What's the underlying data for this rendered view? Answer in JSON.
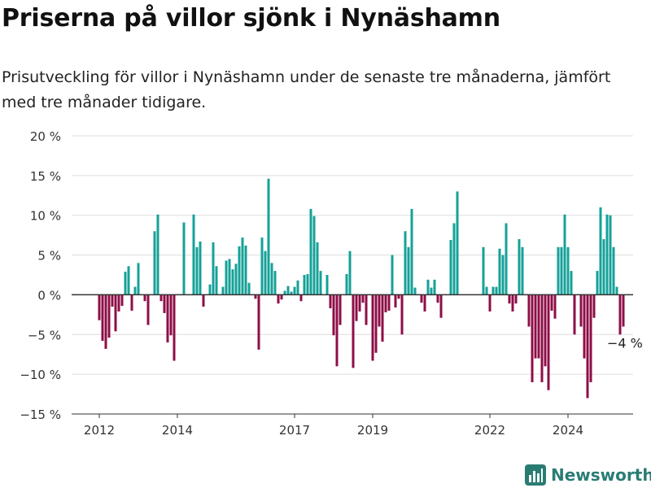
{
  "header": {
    "title": "Priserna på villor sjönk i Nynäshamn",
    "subtitle": "Prisutveckling för villor i Nynäshamn under de senaste tre månaderna, jämfört med tre månader tidigare."
  },
  "brand": {
    "name": "Newsworthy",
    "icon": "bar-chart-logo-icon",
    "color": "#2a7c73"
  },
  "colors": {
    "positive": "#15a198",
    "negative": "#8e0e46",
    "zero_line": "#333333",
    "grid": "#dddddd"
  },
  "chart_data": {
    "type": "bar",
    "title": "Priserna på villor sjönk i Nynäshamn",
    "xlabel": "",
    "ylabel": "",
    "ylim": [
      -15,
      20
    ],
    "y_ticks": [
      {
        "value": 20,
        "label": "20 %"
      },
      {
        "value": 15,
        "label": "15 %"
      },
      {
        "value": 10,
        "label": "10 %"
      },
      {
        "value": 5,
        "label": "5 %"
      },
      {
        "value": 0,
        "label": "0 %"
      },
      {
        "value": -5,
        "label": "−5 %"
      },
      {
        "value": -10,
        "label": "−10 %"
      },
      {
        "value": -15,
        "label": "−15 %"
      }
    ],
    "x_ticks": [
      {
        "year": 2012,
        "label": "2012"
      },
      {
        "year": 2014,
        "label": "2014"
      },
      {
        "year": 2017,
        "label": "2017"
      },
      {
        "year": 2019,
        "label": "2019"
      },
      {
        "year": 2022,
        "label": "2022"
      },
      {
        "year": 2024,
        "label": "2024"
      }
    ],
    "x_start": "2012-01",
    "grid": true,
    "legend": "none",
    "values": [
      -3.2,
      -5.8,
      -6.8,
      -5.4,
      -1.5,
      -4.6,
      -2.1,
      -1.4,
      2.9,
      3.6,
      -2.0,
      1.0,
      4.0,
      0,
      -0.8,
      -3.8,
      0,
      8.0,
      10.1,
      -0.8,
      -2.3,
      -6.0,
      -5.1,
      -8.3,
      0,
      0,
      9.1,
      0,
      0,
      10.1,
      6.0,
      6.7,
      -1.5,
      0,
      1.3,
      6.6,
      3.6,
      0,
      1.0,
      4.3,
      4.5,
      3.2,
      3.9,
      6.1,
      7.2,
      6.2,
      1.5,
      0,
      -0.5,
      -6.9,
      7.2,
      5.5,
      14.6,
      4.0,
      3.0,
      -1.1,
      -0.6,
      0.5,
      1.1,
      0.4,
      1.0,
      1.8,
      -0.8,
      2.5,
      2.6,
      10.8,
      9.9,
      6.6,
      3.0,
      0,
      2.5,
      -1.7,
      -5.1,
      -9.0,
      -3.8,
      0,
      2.6,
      5.5,
      -9.2,
      -3.3,
      -2.1,
      -1.0,
      -3.8,
      0,
      -8.3,
      -7.3,
      -4.0,
      -5.9,
      -2.2,
      -2.0,
      5.0,
      -1.6,
      -0.5,
      -5.0,
      8.0,
      6.0,
      10.8,
      0.9,
      0,
      -1.0,
      -2.1,
      1.9,
      0.9,
      1.9,
      -1.0,
      -2.9,
      0,
      0,
      6.9,
      9.0,
      13.0,
      0,
      0,
      0,
      0,
      0,
      0,
      0,
      6.0,
      1.0,
      -2.1,
      1.0,
      1.0,
      5.8,
      5.0,
      9.0,
      -1.1,
      -2.1,
      -1.1,
      7.0,
      6.0,
      0,
      -4.0,
      -11.0,
      -8.0,
      -8.0,
      -11.0,
      -9.0,
      -12.0,
      -2.0,
      -3.0,
      6.0,
      6.0,
      10.1,
      6.0,
      3.0,
      -5.0,
      0,
      -4.0,
      -8.0,
      -13.0,
      -11.0,
      -2.9,
      3.0,
      11.0,
      7.0,
      10.1,
      10.0,
      6.0,
      1.0,
      -5.0,
      -4.0
    ],
    "annotations": [
      {
        "text": "−4 %",
        "target": "last"
      }
    ]
  }
}
